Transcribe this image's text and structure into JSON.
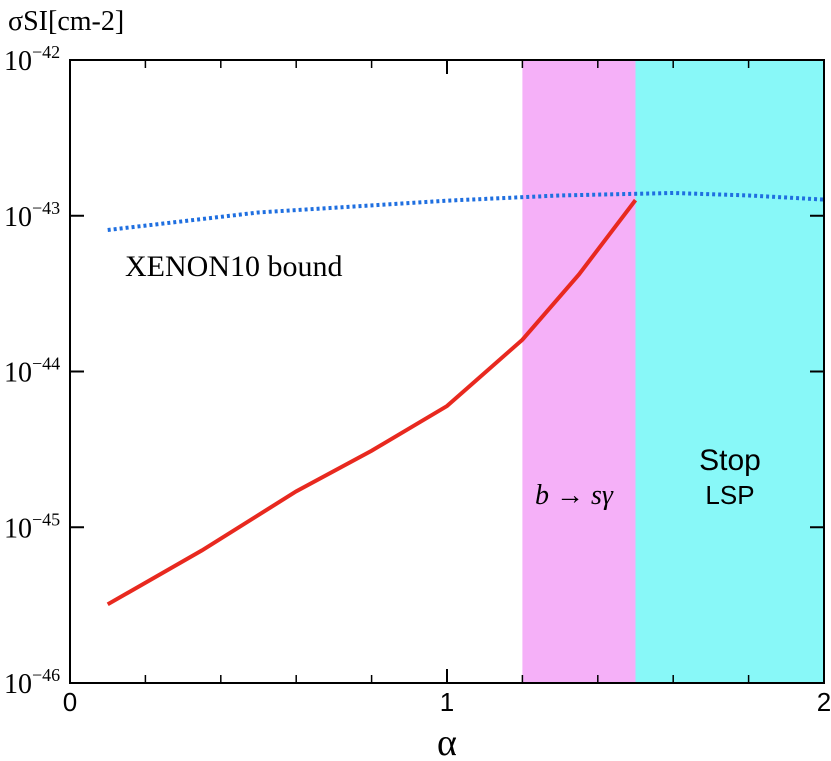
{
  "chart_data": {
    "type": "line",
    "y_label": "σSI[cm-2]",
    "x_label": "α",
    "annotations": [
      "XENON10 bound",
      "b → sγ",
      "Stop",
      "LSP"
    ],
    "xlim": [
      0,
      2
    ],
    "xticks": [
      0,
      1,
      2
    ],
    "xminorticks": [
      0.2,
      0.4,
      0.6,
      0.8,
      1.2,
      1.4,
      1.6,
      1.8
    ],
    "ylim": [
      1e-46,
      1e-42
    ],
    "log_y": true,
    "yticks": [
      {
        "value": 1e-46,
        "label": "10−46"
      },
      {
        "value": 1e-45,
        "label": "10−45"
      },
      {
        "value": 1e-44,
        "label": "10−44"
      },
      {
        "value": 1e-43,
        "label": "10−43"
      },
      {
        "value": 1e-42,
        "label": "10−42"
      }
    ],
    "regions": [
      {
        "xlim": [
          1.2,
          1.5
        ],
        "color": "#f5b0f8"
      },
      {
        "xlim": [
          1.5,
          2
        ],
        "color": "#88f8f8"
      }
    ],
    "series": [
      {
        "color": "#e8291f",
        "style": "solid",
        "x": [
          0.1,
          0.35,
          0.6,
          0.8,
          1.0,
          1.2,
          1.35,
          1.5
        ],
        "values": [
          3.2e-46,
          7.1e-46,
          1.7e-45,
          3.1e-45,
          6e-45,
          1.6e-44,
          4.2e-44,
          1.26e-43
        ]
      },
      {
        "color": "#1f6fe0",
        "style": "dotted",
        "x": [
          0.1,
          0.5,
          1.0,
          1.3,
          1.6,
          1.8,
          2.0
        ],
        "values": [
          8.1e-44,
          1.05e-43,
          1.25e-43,
          1.35e-43,
          1.4e-43,
          1.35e-43,
          1.27e-43
        ]
      }
    ]
  }
}
